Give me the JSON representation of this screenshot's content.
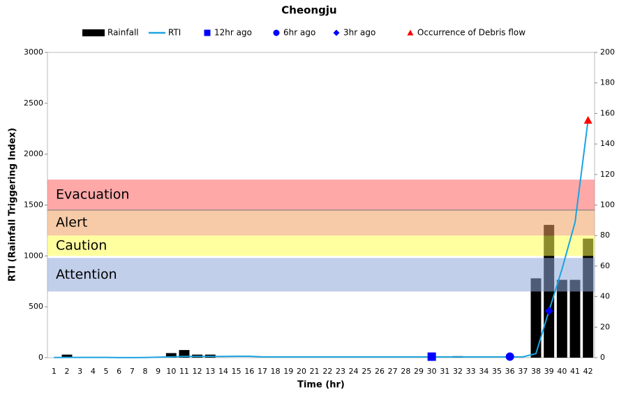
{
  "chart_data": {
    "type": "bar_line",
    "title": "Cheongju",
    "x_label": "Time (hr)",
    "y_label": "RTI (Rainfall Triggering Index)",
    "categories": [
      1,
      2,
      3,
      4,
      5,
      6,
      7,
      8,
      9,
      10,
      11,
      12,
      13,
      14,
      15,
      16,
      17,
      18,
      19,
      20,
      21,
      22,
      23,
      24,
      25,
      26,
      27,
      28,
      29,
      30,
      31,
      32,
      33,
      34,
      35,
      36,
      37,
      38,
      39,
      40,
      41,
      42
    ],
    "ylim": [
      0,
      3000
    ],
    "yticks": [
      0,
      500,
      1000,
      1500,
      2000,
      2500,
      3000
    ],
    "y2lim": [
      0,
      200
    ],
    "y2ticks": [
      0,
      20,
      40,
      60,
      80,
      100,
      120,
      140,
      160,
      180,
      200
    ],
    "series": [
      {
        "name": "Rainfall",
        "type": "bar",
        "axis": "y2",
        "color": "#000000",
        "values": [
          0,
          2,
          0,
          0,
          0,
          0,
          0,
          0,
          0,
          3,
          5,
          2,
          2,
          0,
          0,
          0,
          0,
          0,
          0,
          0,
          0,
          0,
          0,
          0,
          0,
          0,
          0,
          0,
          0,
          0,
          0,
          1,
          0,
          0,
          0,
          0,
          0,
          52,
          87,
          51,
          51,
          78
        ]
      },
      {
        "name": "RTI",
        "type": "line",
        "color": "#1aa3df",
        "values": [
          2,
          3,
          3,
          3,
          3,
          1,
          1,
          2,
          5,
          8,
          12,
          12,
          12,
          12,
          14,
          14,
          8,
          8,
          8,
          8,
          8,
          8,
          8,
          8,
          8,
          8,
          8,
          8,
          8,
          8,
          8,
          8,
          8,
          8,
          8,
          8,
          8,
          40,
          460,
          870,
          1330,
          2333
        ]
      },
      {
        "name": "12hr ago",
        "type": "marker",
        "marker": "square",
        "color": "#0000ff",
        "x": [
          30
        ],
        "values": [
          10
        ]
      },
      {
        "name": "6hr ago",
        "type": "marker",
        "marker": "circle",
        "color": "#0000ff",
        "x": [
          36
        ],
        "values": [
          10
        ]
      },
      {
        "name": "3hr ago",
        "type": "marker",
        "marker": "diamond",
        "color": "#0000ff",
        "x": [
          39
        ],
        "values": [
          460
        ]
      },
      {
        "name": "Occurrence of Debris flow",
        "type": "marker",
        "marker": "triangle",
        "color": "#ff0000",
        "x": [
          42
        ],
        "values": [
          2333
        ]
      }
    ],
    "bands": [
      {
        "name": "Evacuation",
        "from": 1450,
        "to": 1750,
        "color": "#ff6060",
        "text_color": "#ff0000"
      },
      {
        "name": "Alert",
        "from": 1200,
        "to": 1450,
        "color": "#f0a060",
        "text_color": "#a0522d"
      },
      {
        "name": "Caution",
        "from": 1000,
        "to": 1200,
        "color": "#ffff50",
        "text_color": "#f0c000"
      },
      {
        "name": "Attention",
        "from": 650,
        "to": 980,
        "color": "#8fa8d8",
        "text_color": "#0000ff"
      }
    ]
  }
}
